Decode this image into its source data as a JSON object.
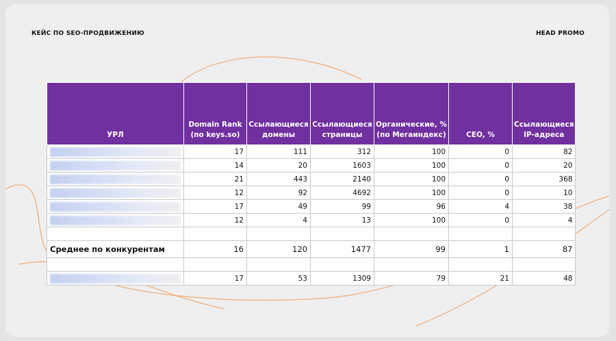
{
  "header": {
    "left": "КЕЙС ПО SEO-ПРОДВИЖЕНИЮ",
    "right": "HEAD PROMO"
  },
  "table": {
    "columns": [
      "УРЛ",
      "Domain Rank\n(по keys.so)",
      "Ссылающиеся\nдомены",
      "Ссылающиеся\nстраницы",
      "Органические, %\n(по Мегаиндекс)",
      "CEO, %",
      "Ссылающиеся\nIP-адреса"
    ],
    "rows": [
      [
        17,
        111,
        312,
        100,
        0,
        82
      ],
      [
        14,
        20,
        1603,
        100,
        0,
        20
      ],
      [
        21,
        443,
        2140,
        100,
        0,
        368
      ],
      [
        12,
        92,
        4692,
        100,
        0,
        10
      ],
      [
        17,
        49,
        99,
        96,
        4,
        38
      ],
      [
        12,
        4,
        13,
        100,
        0,
        4
      ]
    ],
    "average": {
      "label": "Среднее по конкурентам",
      "values": [
        16,
        120,
        1477,
        99,
        1,
        87
      ]
    },
    "own": [
      17,
      53,
      1309,
      79,
      21,
      48
    ]
  }
}
